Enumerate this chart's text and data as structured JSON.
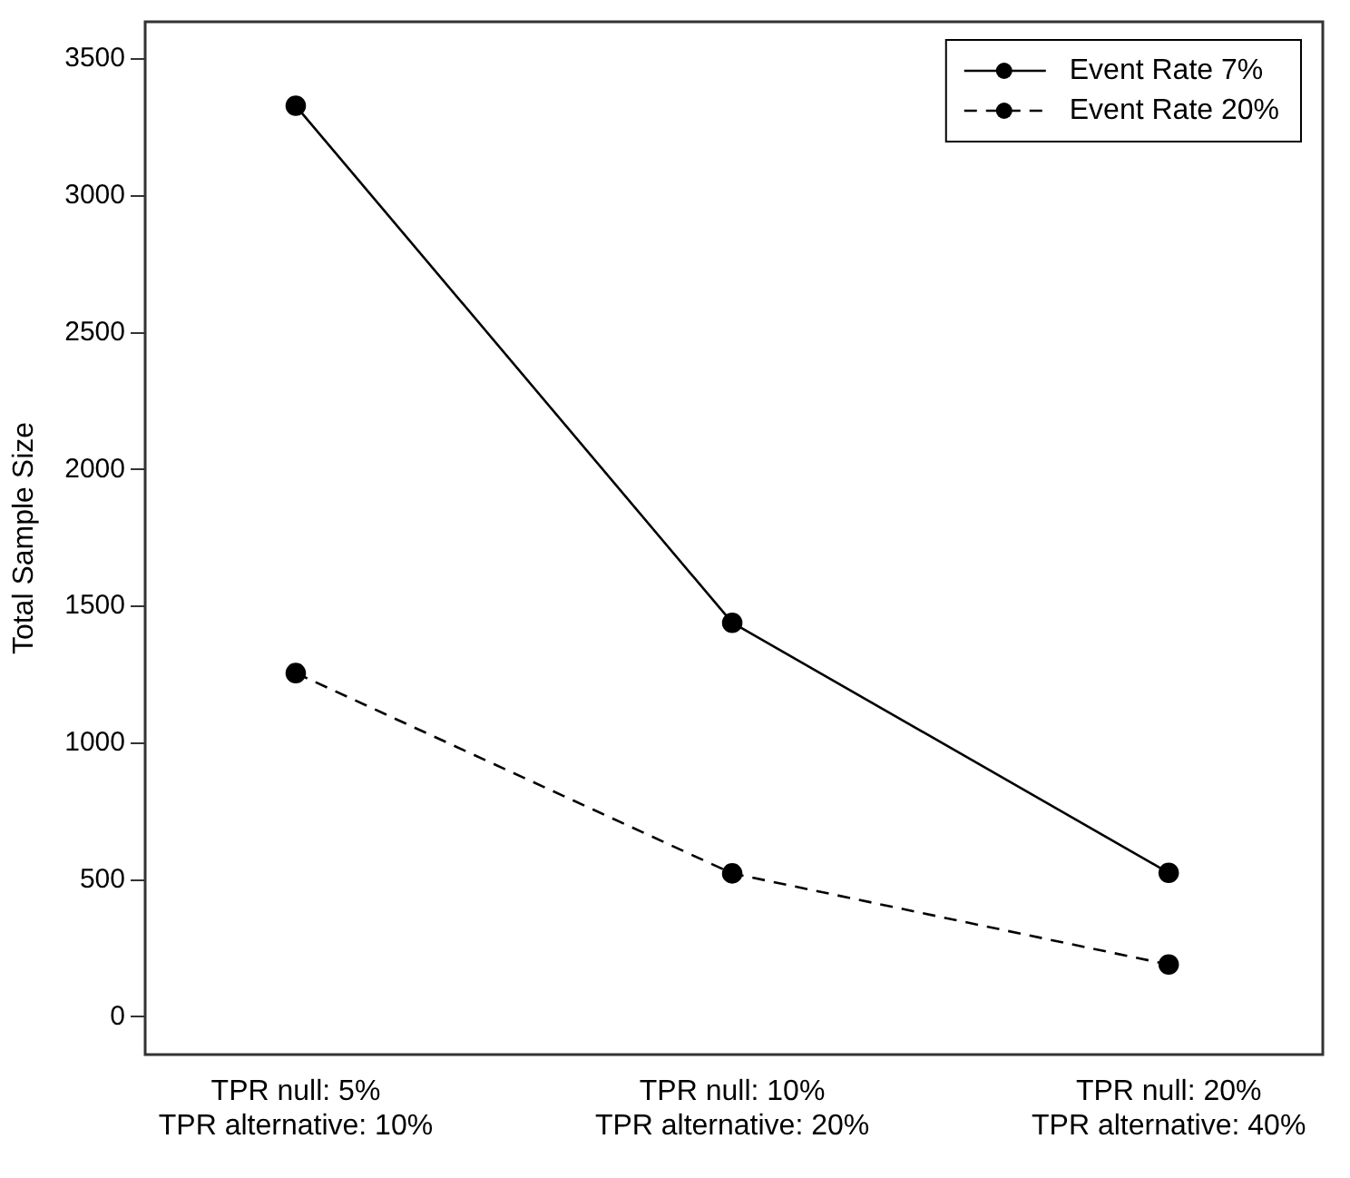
{
  "chart_data": {
    "type": "line",
    "ylabel": "Total Sample Size",
    "categories": [
      "TPR null: 5%\nTPR alternative: 10%",
      "TPR null: 10%\nTPR alternative: 20%",
      "TPR null: 20%\nTPR alternative: 40%"
    ],
    "series": [
      {
        "name": "Event Rate 7%",
        "color": "#000000",
        "line_style": "solid",
        "values": [
          3329,
          1440,
          526
        ]
      },
      {
        "name": "Event Rate 20%",
        "color": "#000000",
        "line_style": "dashed",
        "values": [
          1256,
          524,
          191
        ]
      }
    ],
    "ylim": [
      -138,
      3636
    ],
    "yticks": [
      0,
      500,
      1000,
      1500,
      2000,
      2500,
      3000,
      3500
    ],
    "grid": false,
    "legend": "top right",
    "marker": "circle"
  }
}
